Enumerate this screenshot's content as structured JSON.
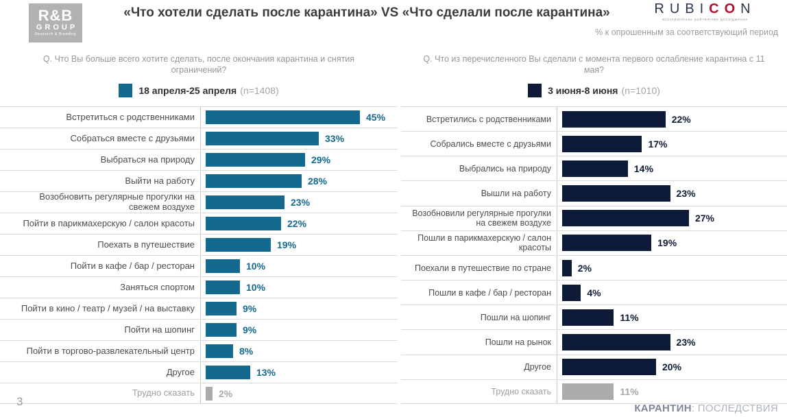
{
  "slide": {
    "title": "«Что хотели сделать после карантина» VS «Что сделали после карантина»",
    "subtitle_right": "% к опрошенным за соответствующий период",
    "page_number": "3",
    "footer_brand_bold": "КАРАНТИН",
    "footer_brand_rest": ": ПОСЛЕДСТВИЯ"
  },
  "logos": {
    "rb_group": {
      "line1": "R&B",
      "line2": "GROUP",
      "line3": "Research & Branding"
    },
    "rubicon": {
      "part1": "RUBI",
      "part2_red": "CO",
      "part3": "N",
      "tagline": "всеукраїнське рейтингове дослідження"
    }
  },
  "chart_data": [
    {
      "type": "bar",
      "orientation": "horizontal",
      "title": "Q. Что Вы больше всего хотите сделать, после окончания карантина и снятия ограничений?",
      "legend": {
        "label": "18 апреля-25 апреля",
        "n_label": "(n=1408)",
        "position": "top-center"
      },
      "bar_color": "#136A8E",
      "muted_bar_color": "#ABABAB",
      "unit": "%",
      "xlim": [
        0,
        50
      ],
      "grid": false,
      "categories": [
        "Встретиться с родственниками",
        "Собраться вместе с друзьями",
        "Выбраться на природу",
        "Выйти на работу",
        "Возобновить регулярные прогулки на свежем воздухе",
        "Пойти в парикмахерскую / салон красоты",
        "Поехать в путешествие",
        "Пойти в кафе / бар / ресторан",
        "Заняться спортом",
        "Пойти в кино / театр / музей / на выставку",
        "Пойти на шопинг",
        "Пойти в торгово-развлекательный центр",
        "Другое",
        "Трудно сказать"
      ],
      "values": [
        45,
        33,
        29,
        28,
        23,
        22,
        19,
        10,
        10,
        9,
        9,
        8,
        13,
        2
      ],
      "muted_categories": [
        "Трудно сказать"
      ]
    },
    {
      "type": "bar",
      "orientation": "horizontal",
      "title": "Q. Что из перечисленного Вы сделали с момента первого ослабление карантина с 11 мая?",
      "legend": {
        "label": "3 июня-8 июня",
        "n_label": "(n=1010)",
        "position": "top-center"
      },
      "bar_color": "#0D1B38",
      "muted_bar_color": "#ABABAB",
      "unit": "%",
      "xlim": [
        0,
        30
      ],
      "grid": false,
      "categories": [
        "Встретились с родственниками",
        "Собрались вместе с друзьями",
        "Выбрались на природу",
        "Вышли на работу",
        "Возобновили регулярные прогулки на свежем воздухе",
        "Пошли в парикмахерскую / салон красоты",
        "Поехали в путешествие по стране",
        "Пошли в кафе / бар / ресторан",
        "Пошли на шопинг",
        "Пошли на рынок",
        "Другое",
        "Трудно сказать"
      ],
      "values": [
        22,
        17,
        14,
        23,
        27,
        19,
        2,
        4,
        11,
        23,
        20,
        11
      ],
      "muted_categories": [
        "Трудно сказать"
      ]
    }
  ]
}
